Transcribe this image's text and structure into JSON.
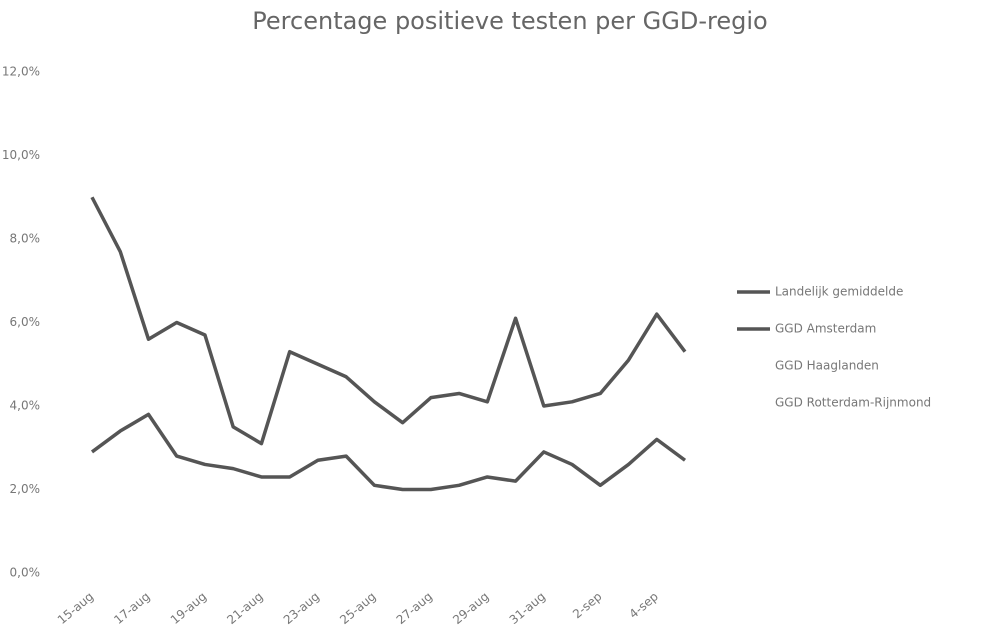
{
  "chart_data": {
    "type": "line",
    "title": "Percentage positieve testen per GGD-regio",
    "categories": [
      "15-aug",
      null,
      "17-aug",
      null,
      "19-aug",
      null,
      "21-aug",
      null,
      "23-aug",
      null,
      "25-aug",
      null,
      "27-aug",
      null,
      "29-aug",
      null,
      "31-aug",
      null,
      "2-sep",
      null,
      "4-sep",
      null
    ],
    "series": [
      {
        "name": "Landelijk gemiddelde",
        "color": "#555555",
        "values": [
          2.9,
          3.4,
          3.8,
          2.8,
          2.6,
          2.5,
          2.3,
          2.3,
          2.7,
          2.8,
          2.1,
          2.0,
          2.0,
          2.1,
          2.3,
          2.2,
          2.9,
          2.6,
          2.1,
          2.6,
          3.2,
          2.7
        ]
      },
      {
        "name": "GGD Amsterdam",
        "color": "#555555",
        "values": [
          9.0,
          7.7,
          5.6,
          6.0,
          5.7,
          3.5,
          3.1,
          5.3,
          5.0,
          4.7,
          4.1,
          3.6,
          4.2,
          4.3,
          4.1,
          6.1,
          4.0,
          4.1,
          4.3,
          5.1,
          6.2,
          5.3
        ]
      },
      {
        "name": "GGD Haaglanden",
        "color": "#ffffff",
        "values": [
          null,
          null,
          null,
          null,
          null,
          null,
          null,
          null,
          null,
          null,
          null,
          null,
          null,
          null,
          null,
          null,
          null,
          null,
          null,
          null,
          null,
          null
        ]
      },
      {
        "name": "GGD Rotterdam-Rijnmond",
        "color": "#ffffff",
        "values": [
          null,
          null,
          null,
          null,
          null,
          null,
          null,
          null,
          null,
          null,
          null,
          null,
          null,
          null,
          null,
          null,
          null,
          null,
          null,
          null,
          null,
          null
        ]
      }
    ],
    "ylim": [
      0,
      12
    ],
    "yticks": [
      {
        "value": 0,
        "label": "0,0%"
      },
      {
        "value": 2,
        "label": "2,0%"
      },
      {
        "value": 4,
        "label": "4,0%"
      },
      {
        "value": 6,
        "label": "6,0%"
      },
      {
        "value": 8,
        "label": "8,0%"
      },
      {
        "value": 10,
        "label": "10,0%"
      },
      {
        "value": 12,
        "label": "12,0%"
      }
    ],
    "grid": false,
    "legend": "right"
  }
}
